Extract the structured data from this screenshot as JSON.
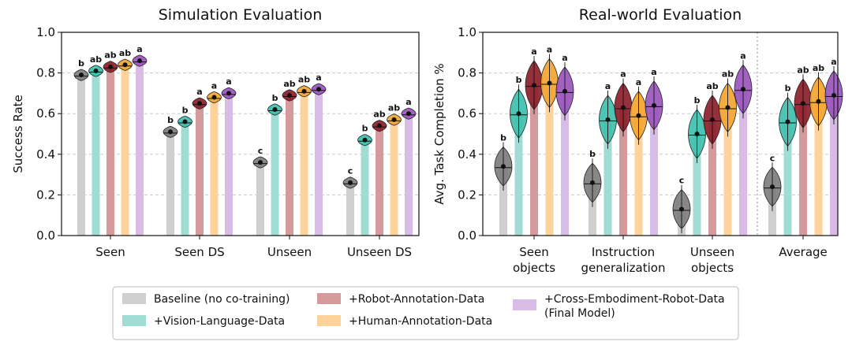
{
  "colors": {
    "Baseline": "#cfcfcf",
    "VL": "#9fdcd3",
    "Robot": "#d49a9c",
    "Human": "#fdd39b",
    "Cross": "#d9bce6",
    "violin": [
      "#7e7e7e",
      "#3fbfae",
      "#8d1f2a",
      "#f3a531",
      "#9a55bd"
    ]
  },
  "legend": {
    "items": [
      {
        "key": "Baseline",
        "lines": [
          "Baseline (no co-training)"
        ]
      },
      {
        "key": "VL",
        "lines": [
          "+Vision-Language-Data"
        ]
      },
      {
        "key": "Robot",
        "lines": [
          "+Robot-Annotation-Data"
        ]
      },
      {
        "key": "Human",
        "lines": [
          "+Human-Annotation-Data"
        ]
      },
      {
        "key": "Cross",
        "lines": [
          "+Cross-Embodiment-Robot-Data",
          "(Final Model)"
        ]
      }
    ]
  },
  "chart_data": [
    {
      "type": "bar",
      "title": "Simulation Evaluation",
      "ylabel": "Success Rate",
      "ylim": [
        0,
        1.0
      ],
      "yticks": [
        "0.0",
        "0.2",
        "0.4",
        "0.6",
        "0.8",
        "1.0"
      ],
      "grid": true,
      "categories": [
        [
          "Seen"
        ],
        [
          "Seen DS"
        ],
        [
          "Unseen"
        ],
        [
          "Unseen DS"
        ]
      ],
      "series": [
        {
          "key": "Baseline",
          "values": [
            0.79,
            0.51,
            0.36,
            0.26
          ],
          "sig": [
            "b",
            "b",
            "c",
            "c"
          ]
        },
        {
          "key": "VL",
          "values": [
            0.81,
            0.56,
            0.62,
            0.47
          ],
          "sig": [
            "ab",
            "b",
            "b",
            "b"
          ]
        },
        {
          "key": "Robot",
          "values": [
            0.83,
            0.65,
            0.69,
            0.54
          ],
          "sig": [
            "ab",
            "a",
            "ab",
            "ab"
          ]
        },
        {
          "key": "Human",
          "values": [
            0.84,
            0.68,
            0.71,
            0.57
          ],
          "sig": [
            "ab",
            "a",
            "ab",
            "ab"
          ]
        },
        {
          "key": "Cross",
          "values": [
            0.86,
            0.7,
            0.72,
            0.6
          ],
          "sig": [
            "a",
            "a",
            "a",
            "a"
          ]
        }
      ]
    },
    {
      "type": "bar",
      "title": "Real-world Evaluation",
      "ylabel": "Avg. Task Completion %",
      "ylim": [
        0,
        1.0
      ],
      "yticks": [
        "0.0",
        "0.2",
        "0.4",
        "0.6",
        "0.8",
        "1.0"
      ],
      "grid": true,
      "categories": [
        [
          "Seen",
          "objects"
        ],
        [
          "Instruction",
          "generalization"
        ],
        [
          "Unseen",
          "objects"
        ],
        [
          "Average"
        ]
      ],
      "series": [
        {
          "key": "Baseline",
          "values": [
            0.34,
            0.26,
            0.13,
            0.24
          ],
          "sig": [
            "b",
            "b",
            "c",
            "c"
          ]
        },
        {
          "key": "VL",
          "values": [
            0.6,
            0.57,
            0.5,
            0.56
          ],
          "sig": [
            "b",
            "a",
            "b",
            "b"
          ]
        },
        {
          "key": "Robot",
          "values": [
            0.74,
            0.63,
            0.57,
            0.65
          ],
          "sig": [
            "a",
            "a",
            "ab",
            "ab"
          ]
        },
        {
          "key": "Human",
          "values": [
            0.75,
            0.59,
            0.63,
            0.66
          ],
          "sig": [
            "a",
            "a",
            "ab",
            "ab"
          ]
        },
        {
          "key": "Cross",
          "values": [
            0.71,
            0.64,
            0.72,
            0.69
          ],
          "sig": [
            "a",
            "a",
            "a",
            "a"
          ]
        }
      ]
    }
  ]
}
